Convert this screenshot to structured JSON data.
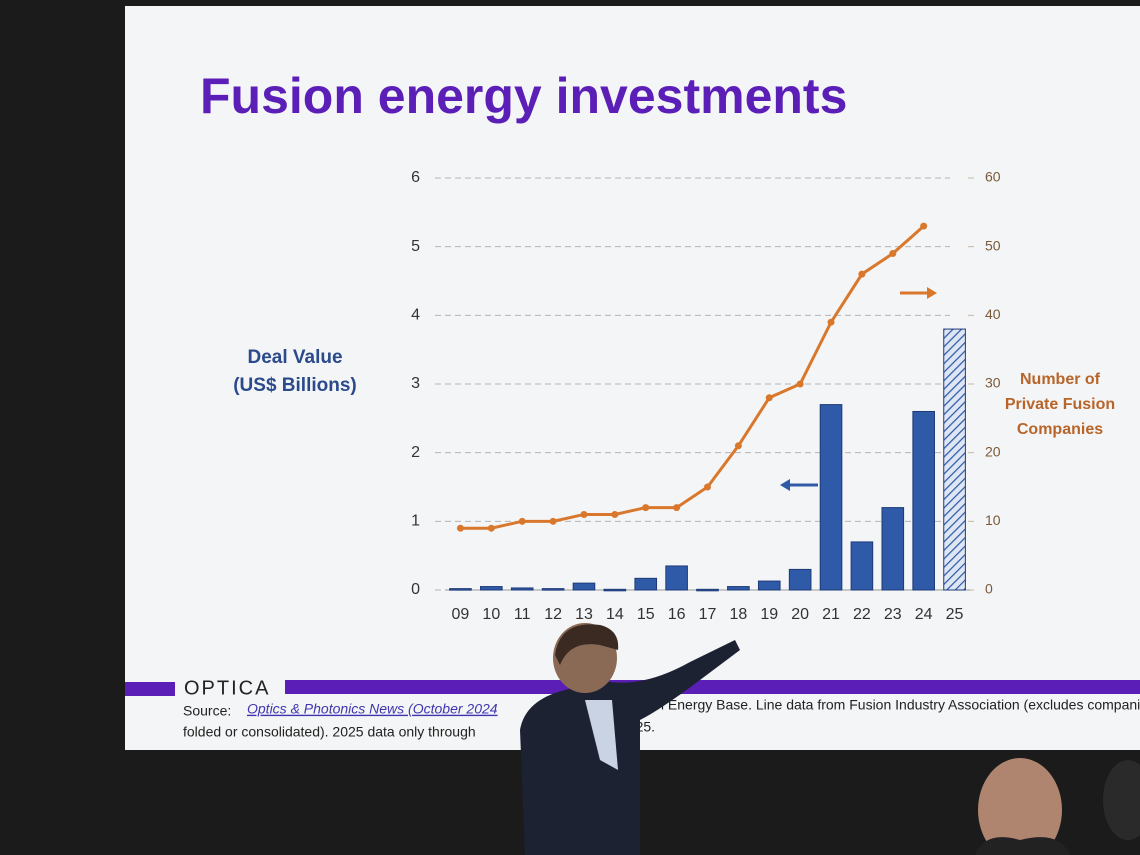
{
  "chart_data": {
    "type": "bar",
    "title": "Fusion energy investments",
    "y_label": [
      "Deal Value",
      "(US$ Billions)"
    ],
    "y2_label": [
      "Number of",
      "Private Fusion",
      "Companies"
    ],
    "categories": [
      "09",
      "10",
      "11",
      "12",
      "13",
      "14",
      "15",
      "16",
      "17",
      "18",
      "19",
      "20",
      "21",
      "22",
      "23",
      "24",
      "25"
    ],
    "series": [
      {
        "type": "bar",
        "color": "#2f5aa8",
        "hatched_index": 16,
        "values": [
          0.02,
          0.05,
          0.03,
          0.02,
          0.1,
          0.01,
          0.17,
          0.35,
          0.01,
          0.05,
          0.13,
          0.3,
          2.7,
          0.7,
          1.2,
          2.6,
          3.8
        ]
      },
      {
        "type": "line",
        "axis": "y2",
        "color": "#d9782d",
        "values": [
          9,
          9,
          10,
          10,
          11,
          11,
          12,
          12,
          15,
          21,
          28,
          30,
          39,
          46,
          49,
          53,
          null
        ]
      }
    ],
    "ylim": [
      0,
      6
    ],
    "yticks": [
      0,
      1,
      2,
      3,
      4,
      5,
      6
    ],
    "y2lim": [
      0,
      60
    ],
    "y2ticks": [
      0,
      10,
      20,
      30,
      40,
      50,
      60
    ],
    "grid": true
  },
  "footer": {
    "logo": "OPTICA",
    "source_label": "Source:",
    "source_link": "Optics & Photonics News (October 2024",
    "source_rest": "Fusion Energy Base.  Line data from Fusion Industry Association (excludes companies",
    "line2": "folded or consolidated).  2025 data only through",
    "line2_end": "2025."
  }
}
